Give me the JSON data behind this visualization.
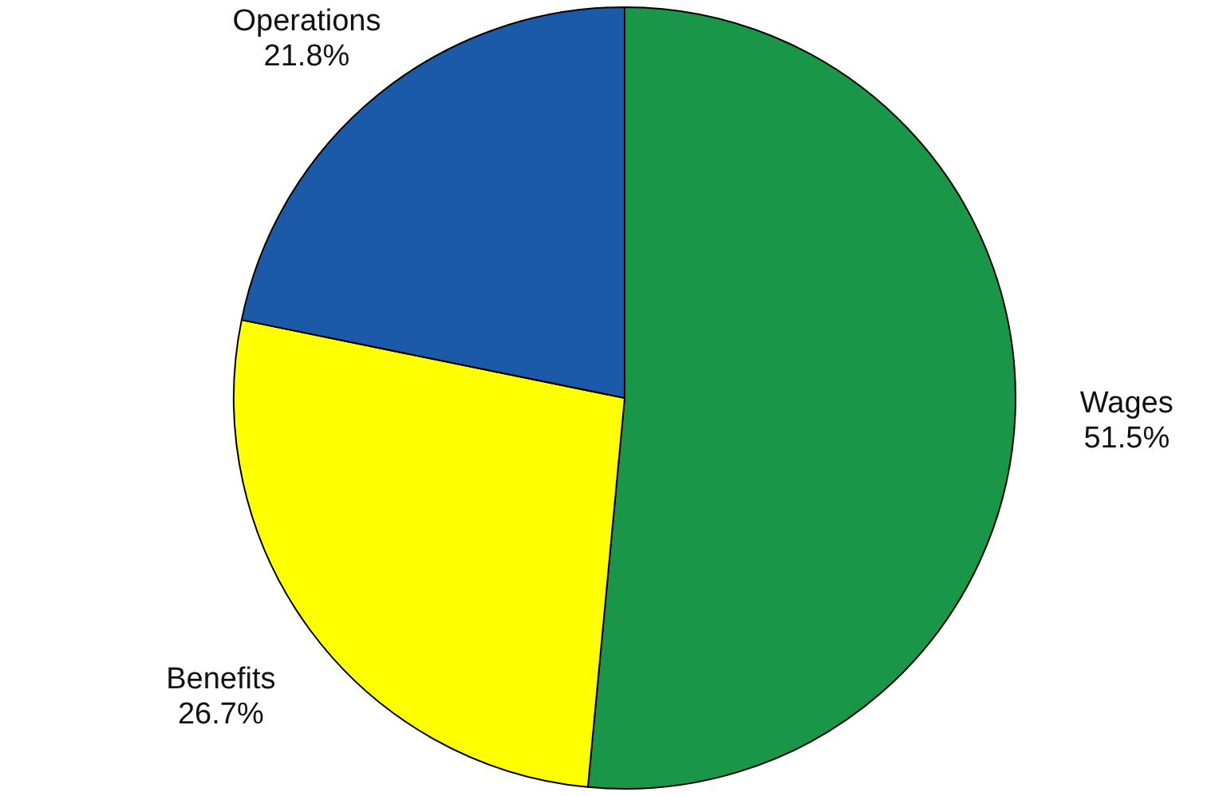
{
  "chart_data": {
    "type": "pie",
    "categories": [
      "Wages",
      "Benefits",
      "Operations"
    ],
    "values": [
      51.5,
      26.7,
      21.8
    ],
    "value_labels": [
      "51.5%",
      "26.7%",
      "21.8%"
    ],
    "colors": [
      "#1a9648",
      "#ffff00",
      "#1a5aa8"
    ],
    "legend": false
  }
}
